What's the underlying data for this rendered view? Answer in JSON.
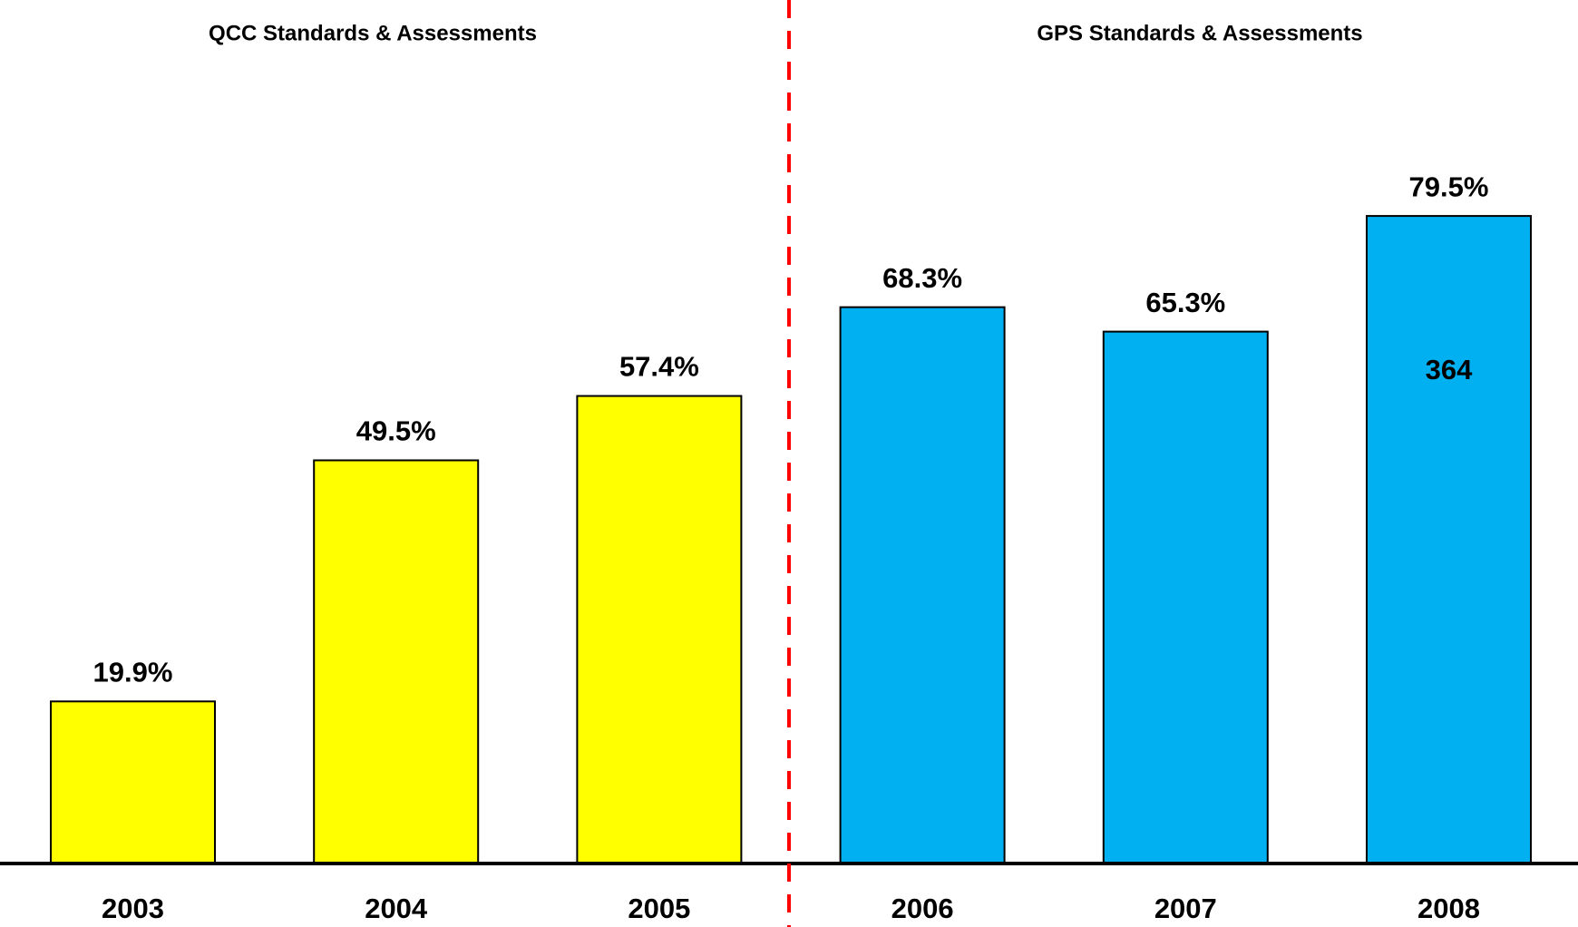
{
  "chart_data": {
    "type": "bar",
    "group_labels": [
      "QCC Standards & Assessments",
      "GPS Standards & Assessments"
    ],
    "categories": [
      "2003",
      "2004",
      "2005",
      "2006",
      "2007",
      "2008"
    ],
    "values": [
      19.9,
      49.5,
      57.4,
      68.3,
      65.3,
      79.5
    ],
    "value_labels": [
      "19.9%",
      "49.5%",
      "57.4%",
      "68.3%",
      "65.3%",
      "79.5%"
    ],
    "colors": [
      "#ffff00",
      "#ffff00",
      "#ffff00",
      "#00b0f0",
      "#00b0f0",
      "#00b0f0"
    ],
    "annotations": [
      "364"
    ]
  }
}
